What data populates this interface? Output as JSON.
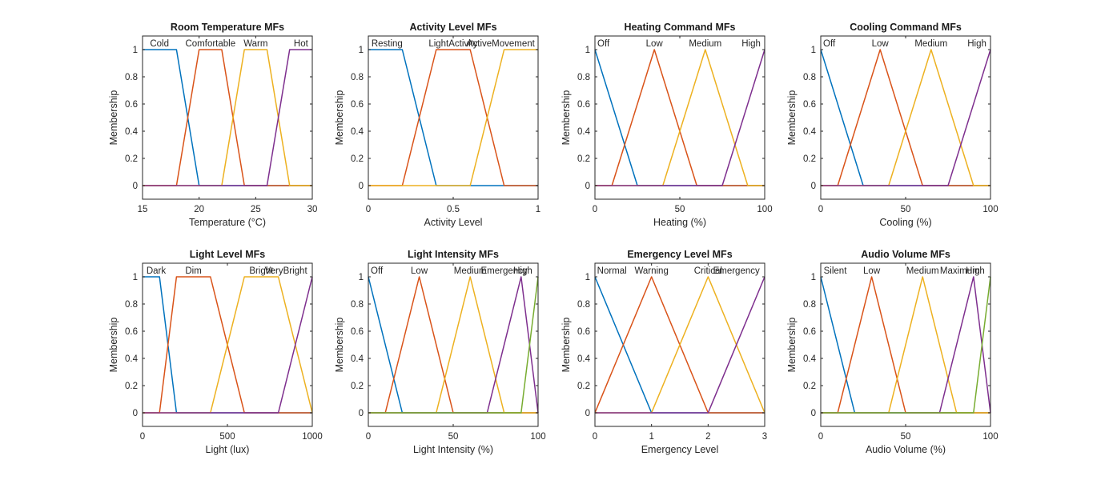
{
  "chart_data": [
    {
      "type": "line",
      "title": "Room Temperature MFs",
      "xlabel": "Temperature (°C)",
      "ylabel": "Membership",
      "xlim": [
        15,
        30
      ],
      "ylim": [
        -0.1,
        1.1
      ],
      "xticks": [
        15,
        20,
        25,
        30
      ],
      "xtick_labels": [
        "15",
        "20",
        "25",
        "30"
      ],
      "yticks": [
        0,
        0.2,
        0.4,
        0.6,
        0.8,
        1
      ],
      "ytick_labels": [
        "0",
        "0.2",
        "0.4",
        "0.6",
        "0.8",
        "1"
      ],
      "series": [
        {
          "name": "Cold",
          "label_x": 16.5,
          "color": "#0072BD",
          "x": [
            15,
            18,
            20,
            30
          ],
          "y": [
            1,
            1,
            0,
            0
          ]
        },
        {
          "name": "Comfortable",
          "label_x": 21,
          "color": "#D95319",
          "x": [
            15,
            18,
            20,
            22,
            24,
            30
          ],
          "y": [
            0,
            0,
            1,
            1,
            0,
            0
          ]
        },
        {
          "name": "Warm",
          "label_x": 25,
          "color": "#EDB120",
          "x": [
            15,
            22,
            24,
            26,
            28,
            30
          ],
          "y": [
            0,
            0,
            1,
            1,
            0,
            0
          ]
        },
        {
          "name": "Hot",
          "label_x": 29,
          "color": "#7E2F8E",
          "x": [
            15,
            26,
            28,
            30
          ],
          "y": [
            0,
            0,
            1,
            1
          ]
        }
      ]
    },
    {
      "type": "line",
      "title": "Activity Level MFs",
      "xlabel": "Activity Level",
      "ylabel": "Membership",
      "xlim": [
        0,
        1
      ],
      "ylim": [
        -0.1,
        1.1
      ],
      "xticks": [
        0,
        0.5,
        1
      ],
      "xtick_labels": [
        "0",
        "0.5",
        "1"
      ],
      "yticks": [
        0,
        0.2,
        0.4,
        0.6,
        0.8,
        1
      ],
      "ytick_labels": [
        "0",
        "0.2",
        "0.4",
        "0.6",
        "0.8",
        "1"
      ],
      "series": [
        {
          "name": "Resting",
          "label_x": 0.11,
          "color": "#0072BD",
          "x": [
            0,
            0.2,
            0.4,
            1
          ],
          "y": [
            1,
            1,
            0,
            0
          ]
        },
        {
          "name": "LightActivity",
          "label_x": 0.5,
          "color": "#D95319",
          "x": [
            0,
            0.2,
            0.4,
            0.6,
            0.8,
            1
          ],
          "y": [
            0,
            0,
            1,
            1,
            0,
            0
          ]
        },
        {
          "name": "ActiveMovement",
          "label_x": 0.78,
          "color": "#EDB120",
          "x": [
            0,
            0.6,
            0.8,
            1
          ],
          "y": [
            0,
            0,
            1,
            1
          ]
        }
      ]
    },
    {
      "type": "line",
      "title": "Heating Command MFs",
      "xlabel": "Heating (%)",
      "ylabel": "Membership",
      "xlim": [
        0,
        100
      ],
      "ylim": [
        -0.1,
        1.1
      ],
      "xticks": [
        0,
        50,
        100
      ],
      "xtick_labels": [
        "0",
        "50",
        "100"
      ],
      "yticks": [
        0,
        0.2,
        0.4,
        0.6,
        0.8,
        1
      ],
      "ytick_labels": [
        "0",
        "0.2",
        "0.4",
        "0.6",
        "0.8",
        "1"
      ],
      "series": [
        {
          "name": "Off",
          "label_x": 5,
          "color": "#0072BD",
          "x": [
            0,
            25,
            100
          ],
          "y": [
            1,
            0,
            0
          ]
        },
        {
          "name": "Low",
          "label_x": 35,
          "color": "#D95319",
          "x": [
            0,
            10,
            35,
            60,
            100
          ],
          "y": [
            0,
            0,
            1,
            0,
            0
          ]
        },
        {
          "name": "Medium",
          "label_x": 65,
          "color": "#EDB120",
          "x": [
            0,
            40,
            65,
            90,
            100
          ],
          "y": [
            0,
            0,
            1,
            0,
            0
          ]
        },
        {
          "name": "High",
          "label_x": 92,
          "color": "#7E2F8E",
          "x": [
            0,
            75,
            100
          ],
          "y": [
            0,
            0,
            1
          ]
        }
      ]
    },
    {
      "type": "line",
      "title": "Cooling Command MFs",
      "xlabel": "Cooling (%)",
      "ylabel": "Membership",
      "xlim": [
        0,
        100
      ],
      "ylim": [
        -0.1,
        1.1
      ],
      "xticks": [
        0,
        50,
        100
      ],
      "xtick_labels": [
        "0",
        "50",
        "100"
      ],
      "yticks": [
        0,
        0.2,
        0.4,
        0.6,
        0.8,
        1
      ],
      "ytick_labels": [
        "0",
        "0.2",
        "0.4",
        "0.6",
        "0.8",
        "1"
      ],
      "series": [
        {
          "name": "Off",
          "label_x": 5,
          "color": "#0072BD",
          "x": [
            0,
            25,
            100
          ],
          "y": [
            1,
            0,
            0
          ]
        },
        {
          "name": "Low",
          "label_x": 35,
          "color": "#D95319",
          "x": [
            0,
            10,
            35,
            60,
            100
          ],
          "y": [
            0,
            0,
            1,
            0,
            0
          ]
        },
        {
          "name": "Medium",
          "label_x": 65,
          "color": "#EDB120",
          "x": [
            0,
            40,
            65,
            90,
            100
          ],
          "y": [
            0,
            0,
            1,
            0,
            0
          ]
        },
        {
          "name": "High",
          "label_x": 92,
          "color": "#7E2F8E",
          "x": [
            0,
            75,
            100
          ],
          "y": [
            0,
            0,
            1
          ]
        }
      ]
    },
    {
      "type": "line",
      "title": "Light Level MFs",
      "xlabel": "Light (lux)",
      "ylabel": "Membership",
      "xlim": [
        0,
        1000
      ],
      "ylim": [
        -0.1,
        1.1
      ],
      "xticks": [
        0,
        500,
        1000
      ],
      "xtick_labels": [
        "0",
        "500",
        "1000"
      ],
      "yticks": [
        0,
        0.2,
        0.4,
        0.6,
        0.8,
        1
      ],
      "ytick_labels": [
        "0",
        "0.2",
        "0.4",
        "0.6",
        "0.8",
        "1"
      ],
      "series": [
        {
          "name": "Dark",
          "label_x": 80,
          "color": "#0072BD",
          "x": [
            0,
            100,
            200,
            1000
          ],
          "y": [
            1,
            1,
            0,
            0
          ]
        },
        {
          "name": "Dim",
          "label_x": 300,
          "color": "#D95319",
          "x": [
            0,
            100,
            200,
            400,
            600,
            1000
          ],
          "y": [
            0,
            0,
            1,
            1,
            0,
            0
          ]
        },
        {
          "name": "Bright",
          "label_x": 700,
          "color": "#EDB120",
          "x": [
            0,
            400,
            600,
            800,
            1000
          ],
          "y": [
            0,
            0,
            1,
            1,
            0
          ]
        },
        {
          "name": "VeryBright",
          "label_x": 845,
          "color": "#7E2F8E",
          "x": [
            0,
            800,
            1000
          ],
          "y": [
            0,
            0,
            1
          ]
        }
      ]
    },
    {
      "type": "line",
      "title": "Light Intensity MFs",
      "xlabel": "Light Intensity (%)",
      "ylabel": "Membership",
      "xlim": [
        0,
        100
      ],
      "ylim": [
        -0.1,
        1.1
      ],
      "xticks": [
        0,
        50,
        100
      ],
      "xtick_labels": [
        "0",
        "50",
        "100"
      ],
      "yticks": [
        0,
        0.2,
        0.4,
        0.6,
        0.8,
        1
      ],
      "ytick_labels": [
        "0",
        "0.2",
        "0.4",
        "0.6",
        "0.8",
        "1"
      ],
      "series": [
        {
          "name": "Off",
          "label_x": 5,
          "color": "#0072BD",
          "x": [
            0,
            20,
            100
          ],
          "y": [
            1,
            0,
            0
          ]
        },
        {
          "name": "Low",
          "label_x": 30,
          "color": "#D95319",
          "x": [
            0,
            10,
            30,
            50,
            100
          ],
          "y": [
            0,
            0,
            1,
            0,
            0
          ]
        },
        {
          "name": "Medium",
          "label_x": 60,
          "color": "#EDB120",
          "x": [
            0,
            40,
            60,
            80,
            100
          ],
          "y": [
            0,
            0,
            1,
            0,
            0
          ]
        },
        {
          "name": "Emergency",
          "label_x": 80,
          "color": "#7E2F8E",
          "x": [
            0,
            70,
            90,
            100
          ],
          "y": [
            0,
            0,
            1,
            0
          ]
        },
        {
          "name": "High",
          "label_x": 91,
          "color": "#77AC30",
          "x": [
            0,
            90,
            100
          ],
          "y": [
            0,
            0,
            1
          ]
        }
      ]
    },
    {
      "type": "line",
      "title": "Emergency Level MFs",
      "xlabel": "Emergency Level",
      "ylabel": "Membership",
      "xlim": [
        0,
        3
      ],
      "ylim": [
        -0.1,
        1.1
      ],
      "xticks": [
        0,
        1,
        2,
        3
      ],
      "xtick_labels": [
        "0",
        "1",
        "2",
        "3"
      ],
      "yticks": [
        0,
        0.2,
        0.4,
        0.6,
        0.8,
        1
      ],
      "ytick_labels": [
        "0",
        "0.2",
        "0.4",
        "0.6",
        "0.8",
        "1"
      ],
      "series": [
        {
          "name": "Normal",
          "label_x": 0.3,
          "color": "#0072BD",
          "x": [
            0,
            1,
            3
          ],
          "y": [
            1,
            0,
            0
          ]
        },
        {
          "name": "Warning",
          "label_x": 1,
          "color": "#D95319",
          "x": [
            0,
            1,
            2,
            3
          ],
          "y": [
            0,
            1,
            0,
            0
          ]
        },
        {
          "name": "Critical",
          "label_x": 2,
          "color": "#EDB120",
          "x": [
            0,
            1,
            2,
            3
          ],
          "y": [
            0,
            0,
            1,
            0
          ]
        },
        {
          "name": "Emergency",
          "label_x": 2.5,
          "color": "#7E2F8E",
          "x": [
            0,
            2,
            3
          ],
          "y": [
            0,
            0,
            1
          ]
        }
      ]
    },
    {
      "type": "line",
      "title": "Audio Volume MFs",
      "xlabel": "Audio Volume (%)",
      "ylabel": "Membership",
      "xlim": [
        0,
        100
      ],
      "ylim": [
        -0.1,
        1.1
      ],
      "xticks": [
        0,
        50,
        100
      ],
      "xtick_labels": [
        "0",
        "50",
        "100"
      ],
      "yticks": [
        0,
        0.2,
        0.4,
        0.6,
        0.8,
        1
      ],
      "ytick_labels": [
        "0",
        "0.2",
        "0.4",
        "0.6",
        "0.8",
        "1"
      ],
      "series": [
        {
          "name": "Silent",
          "label_x": 8.5,
          "color": "#0072BD",
          "x": [
            0,
            20,
            100
          ],
          "y": [
            1,
            0,
            0
          ]
        },
        {
          "name": "Low",
          "label_x": 30,
          "color": "#D95319",
          "x": [
            0,
            10,
            30,
            50,
            100
          ],
          "y": [
            0,
            0,
            1,
            0,
            0
          ]
        },
        {
          "name": "Medium",
          "label_x": 60,
          "color": "#EDB120",
          "x": [
            0,
            40,
            60,
            80,
            100
          ],
          "y": [
            0,
            0,
            1,
            0,
            0
          ]
        },
        {
          "name": "Maximum",
          "label_x": 82,
          "color": "#7E2F8E",
          "x": [
            0,
            70,
            90,
            100
          ],
          "y": [
            0,
            0,
            1,
            0
          ]
        },
        {
          "name": "High",
          "label_x": 91,
          "color": "#77AC30",
          "x": [
            0,
            90,
            100
          ],
          "y": [
            0,
            0,
            1
          ]
        }
      ]
    }
  ]
}
